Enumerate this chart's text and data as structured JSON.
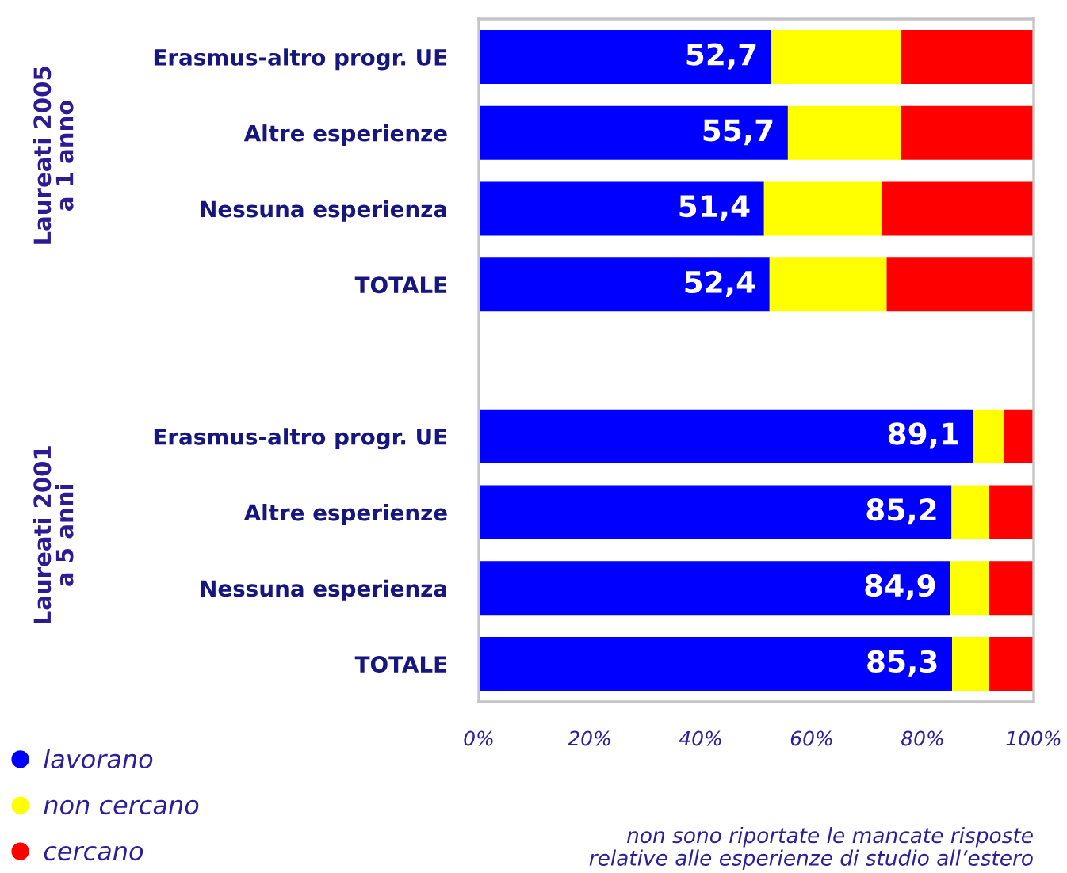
{
  "chart_data": {
    "type": "bar",
    "orientation": "horizontal",
    "stacked": true,
    "categories": [
      "Erasmus-altro progr. UE",
      "Altre esperienze",
      "Nessuna esperienza",
      "TOTALE",
      null,
      "Erasmus-altro progr. UE",
      "Altre esperienze",
      "Nessuna esperienza",
      "TOTALE"
    ],
    "series": [
      {
        "name": "lavorano",
        "color": "#0000ff",
        "values": [
          52.7,
          55.7,
          51.4,
          52.4,
          null,
          89.1,
          85.2,
          84.9,
          85.3
        ],
        "value_labels": [
          "52,7",
          "55,7",
          "51,4",
          "52,4",
          null,
          "89,1",
          "85,2",
          "84,9",
          "85,3"
        ]
      },
      {
        "name": "non cercano",
        "color": "#ffff00",
        "values": [
          23.4,
          20.4,
          21.3,
          21.1,
          null,
          5.6,
          6.7,
          7.0,
          6.6
        ]
      },
      {
        "name": "cercano",
        "color": "#ff0000",
        "values": [
          23.9,
          23.9,
          27.3,
          26.5,
          null,
          5.3,
          8.1,
          8.1,
          8.1
        ]
      }
    ],
    "xlim": [
      0,
      100
    ],
    "xticks": [
      {
        "value": 0,
        "label": "0%"
      },
      {
        "value": 20,
        "label": "20%"
      },
      {
        "value": 40,
        "label": "40%"
      },
      {
        "value": 60,
        "label": "60%"
      },
      {
        "value": 80,
        "label": "80%"
      },
      {
        "value": 100,
        "label": "100%"
      }
    ],
    "legend": "bottom left",
    "annotations": [
      "Laureati 2005\na 1 anno",
      "Laureati 2001\na 5 anni",
      "non sono riportate le mancate risposte\nrelative alle esperienze di studio all’estero"
    ]
  }
}
